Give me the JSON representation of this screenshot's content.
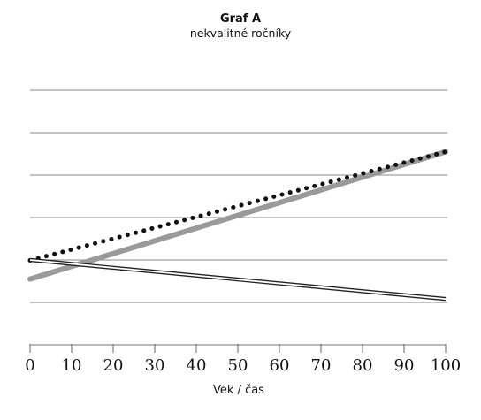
{
  "title": "Graf A",
  "subtitle": "nekvalitné ročníky",
  "chart_data": {
    "type": "line",
    "title": "Graf A",
    "subtitle": "nekvalitné ročníky",
    "xlabel": "Vek / čas",
    "ylabel": "",
    "xlim": [
      0,
      100
    ],
    "ylim": [
      0,
      7
    ],
    "x_ticks": [
      "0",
      "10",
      "20",
      "30",
      "40",
      "50",
      "60",
      "70",
      "80",
      "90",
      "100"
    ],
    "y_grid_lines": [
      1,
      2,
      3,
      4,
      5,
      6
    ],
    "grid": "horizontal",
    "legend": "none",
    "series": [
      {
        "style": "solid-gray",
        "color": "#9a9a9a",
        "x": [
          0,
          100
        ],
        "y": [
          1.55,
          4.55
        ]
      },
      {
        "style": "dotted-black",
        "color": "#111111",
        "x": [
          0,
          100
        ],
        "y": [
          1.99,
          4.55
        ]
      },
      {
        "style": "double-line",
        "color": "#222222",
        "x": [
          0,
          100
        ],
        "y": [
          2.0,
          1.08
        ]
      }
    ]
  }
}
